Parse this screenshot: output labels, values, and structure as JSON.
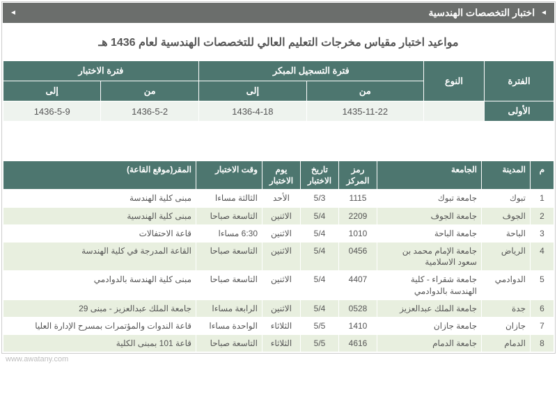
{
  "header": {
    "title": "اختبار التخصصات الهندسية",
    "bullet": "◄"
  },
  "page_title": "مواعيد اختبار مقياس مخرجات التعليم العالي للتخصصات الهندسية لعام 1436 هـ",
  "table1": {
    "head": {
      "period": "الفترة",
      "type": "النوع",
      "early": "فترة التسجيل المبكر",
      "test": "فترة الاختبار",
      "from": "من",
      "to": "إلى"
    },
    "row": {
      "period": "الأولى",
      "type": "",
      "early_from": "1435-11-22",
      "early_to": "1436-4-18",
      "test_from": "1436-5-2",
      "test_to": "1436-5-9"
    }
  },
  "table2": {
    "head": {
      "num": "م",
      "city": "المدينة",
      "univ": "الجامعة",
      "center": "رمز المركز",
      "date": "تاريخ الاختبار",
      "day": "يوم الاختبار",
      "time": "وقت الاختبار",
      "loc": "المقر(موقع القاعة)"
    },
    "rows": [
      {
        "n": "1",
        "city": "تبوك",
        "univ": "جامعة تبوك",
        "center": "1115",
        "date": "5/3",
        "day": "الأحد",
        "time": "الثالثة مساءا",
        "loc": "مبنى كلية الهندسة"
      },
      {
        "n": "2",
        "city": "الجوف",
        "univ": "جامعة الجوف",
        "center": "2209",
        "date": "5/4",
        "day": "الاثنين",
        "time": "التاسعة صباحا",
        "loc": "مبنى كلية الهندسية"
      },
      {
        "n": "3",
        "city": "الباحة",
        "univ": "جامعة الباحة",
        "center": "1010",
        "date": "5/4",
        "day": "الاثنين",
        "time": "6:30 مساءا",
        "loc": "قاعة الاحتفالات"
      },
      {
        "n": "4",
        "city": "الرياض",
        "univ": "جامعة الإمام محمد بن سعود الاسلامية",
        "center": "0456",
        "date": "5/4",
        "day": "الاثنين",
        "time": "التاسعة صباحا",
        "loc": "القاعة المدرجة في كلية الهندسة"
      },
      {
        "n": "5",
        "city": "الدوادمي",
        "univ": "جامعة شقراء - كلية الهندسة بالدوادمي",
        "center": "4407",
        "date": "5/4",
        "day": "الاثنين",
        "time": "التاسعة صباحا",
        "loc": "مبنى كلية الهندسة بالدوادمي"
      },
      {
        "n": "6",
        "city": "جدة",
        "univ": "جامعة الملك عبدالعزيز",
        "center": "0528",
        "date": "5/4",
        "day": "الاثنين",
        "time": "الرابعة مساءا",
        "loc": "جامعة الملك عبدالعزيز - مبنى 29"
      },
      {
        "n": "7",
        "city": "جازان",
        "univ": "جامعة جازان",
        "center": "1410",
        "date": "5/5",
        "day": "الثلاثاء",
        "time": "الواحدة مساءا",
        "loc": "قاعة الندوات والمؤتمرات بمسرح الإدارة العليا"
      },
      {
        "n": "8",
        "city": "الدمام",
        "univ": "جامعة الدمام",
        "center": "4616",
        "date": "5/5",
        "day": "الثلاثاء",
        "time": "التاسعة صباحا",
        "loc": "قاعة  101 بمبنى الكلية"
      }
    ]
  },
  "watermark": "www.awatany.com"
}
